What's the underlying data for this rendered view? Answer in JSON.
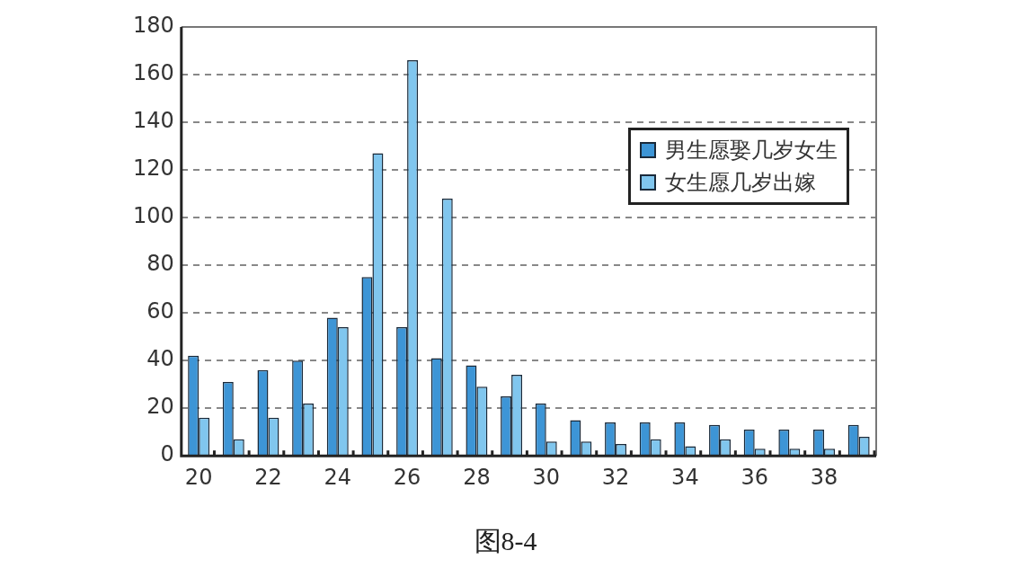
{
  "chart_data": {
    "type": "bar",
    "categories": [
      "20",
      null,
      "22",
      null,
      "24",
      null,
      "26",
      null,
      "28",
      null,
      "30",
      null,
      "32",
      null,
      "34",
      null,
      "36",
      null,
      "38",
      null
    ],
    "series": [
      {
        "name": "男生愿娶几岁女生",
        "color": "#3d95d6",
        "values": [
          42,
          31,
          36,
          40,
          58,
          75,
          54,
          41,
          38,
          25,
          22,
          15,
          14,
          14,
          14,
          13,
          11,
          11,
          11,
          13
        ]
      },
      {
        "name": "女生愿几岁出嫁",
        "color": "#80c6ee",
        "values": [
          16,
          7,
          16,
          22,
          54,
          127,
          166,
          108,
          29,
          34,
          6,
          6,
          5,
          7,
          4,
          7,
          3,
          3,
          3,
          8
        ]
      }
    ],
    "ylim": [
      0,
      180
    ],
    "yticks": [
      0,
      20,
      40,
      60,
      80,
      100,
      120,
      140,
      160,
      180
    ],
    "grid": "y",
    "legend": "top right",
    "annotations": [
      "图8-4"
    ]
  }
}
